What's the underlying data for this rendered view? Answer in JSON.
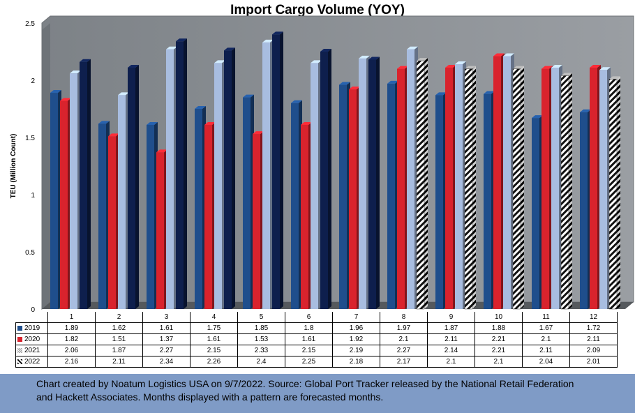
{
  "chart_data": {
    "type": "bar",
    "title": "Import Cargo Volume (YOY)",
    "ylabel": "TEU (Million Count)",
    "xlabel": "",
    "ylim": [
      0,
      2.5
    ],
    "yticks": [
      "0",
      "0.5",
      "1",
      "1.5",
      "2",
      "2.5"
    ],
    "categories": [
      "1",
      "2",
      "3",
      "4",
      "5",
      "6",
      "7",
      "8",
      "9",
      "10",
      "11",
      "12"
    ],
    "forecast_months_2022": [
      "8",
      "9",
      "10",
      "11",
      "12"
    ],
    "series": [
      {
        "name": "2019",
        "color": "#1f4e8c",
        "values": [
          "1.89",
          "1.62",
          "1.61",
          "1.75",
          "1.85",
          "1.8",
          "1.96",
          "1.97",
          "1.87",
          "1.88",
          "1.67",
          "1.72"
        ]
      },
      {
        "name": "2020",
        "color": "#d9232d",
        "values": [
          "1.82",
          "1.51",
          "1.37",
          "1.61",
          "1.53",
          "1.61",
          "1.92",
          "2.1",
          "2.11",
          "2.21",
          "2.1",
          "2.11"
        ]
      },
      {
        "name": "2021",
        "color": "#a8bde0",
        "values": [
          "2.06",
          "1.87",
          "2.27",
          "2.15",
          "2.33",
          "2.15",
          "2.19",
          "2.27",
          "2.14",
          "2.21",
          "2.11",
          "2.09"
        ]
      },
      {
        "name": "2022",
        "color": "#0e1f4d",
        "values": [
          "2.16",
          "2.11",
          "2.34",
          "2.26",
          "2.4",
          "2.25",
          "2.18",
          "2.17",
          "2.1",
          "2.1",
          "2.04",
          "2.01"
        ]
      }
    ],
    "legend": "data-table"
  },
  "footer": {
    "line1": "Chart created by Noatum Logistics USA on 9/7/2022. Source: Global Port Tracker released by the National Retail Federation",
    "line2": "and Hackett Associates. Months displayed with a pattern are forecasted months."
  },
  "colors": {
    "plot_background": "#8a8e93",
    "footer_background": "#7f9bc6"
  }
}
